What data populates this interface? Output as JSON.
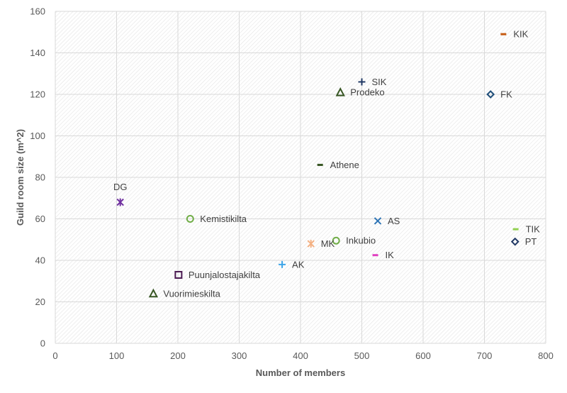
{
  "chart_data": {
    "type": "scatter",
    "title": "",
    "xlabel": "Number of members",
    "ylabel": "Guild room size (m^2)",
    "xlim": [
      0,
      800
    ],
    "ylim": [
      0,
      160
    ],
    "xticks": [
      0,
      100,
      200,
      300,
      400,
      500,
      600,
      700,
      800
    ],
    "yticks": [
      0,
      20,
      40,
      60,
      80,
      100,
      120,
      140,
      160
    ],
    "grid": true,
    "background_pattern": "diagonal-hatch",
    "points": [
      {
        "label": "KIK",
        "x": 731,
        "y": 149,
        "marker": "dash",
        "color": "#c55a11",
        "label_pos": "right"
      },
      {
        "label": "SIK",
        "x": 500,
        "y": 126,
        "marker": "plus",
        "color": "#203864",
        "label_pos": "right"
      },
      {
        "label": "Prodeko",
        "x": 465,
        "y": 121,
        "marker": "triangle",
        "color": "#375623",
        "label_pos": "right"
      },
      {
        "label": "FK",
        "x": 710,
        "y": 120,
        "marker": "diamond",
        "color": "#1f4e79",
        "label_pos": "right"
      },
      {
        "label": "Athene",
        "x": 432,
        "y": 86,
        "marker": "dash",
        "color": "#375623",
        "label_pos": "right"
      },
      {
        "label": "DG",
        "x": 106,
        "y": 68,
        "marker": "star",
        "color": "#7030a0",
        "label_pos": "above"
      },
      {
        "label": "Kemistikilta",
        "x": 220,
        "y": 60,
        "marker": "circle",
        "color": "#70ad47",
        "label_pos": "right"
      },
      {
        "label": "AS",
        "x": 526,
        "y": 59,
        "marker": "x",
        "color": "#2e75b6",
        "label_pos": "right"
      },
      {
        "label": "TIK",
        "x": 751,
        "y": 55,
        "marker": "dash",
        "color": "#92d050",
        "label_pos": "right"
      },
      {
        "label": "Inkubio",
        "x": 458,
        "y": 49.5,
        "marker": "circle",
        "color": "#70ad47",
        "label_pos": "right"
      },
      {
        "label": "PT",
        "x": 750,
        "y": 49,
        "marker": "diamond",
        "color": "#203864",
        "label_pos": "right"
      },
      {
        "label": "MK",
        "x": 417,
        "y": 48,
        "marker": "star",
        "color": "#f4b183",
        "label_pos": "right"
      },
      {
        "label": "IK",
        "x": 522,
        "y": 42.5,
        "marker": "dash",
        "color": "#e040c0",
        "label_pos": "right"
      },
      {
        "label": "AK",
        "x": 370,
        "y": 38,
        "marker": "plus",
        "color": "#3ba4e8",
        "label_pos": "right"
      },
      {
        "label": "Puunjalostajakilta",
        "x": 201,
        "y": 33,
        "marker": "square",
        "color": "#4b1a52",
        "label_pos": "right"
      },
      {
        "label": "Vuorimieskilta",
        "x": 160,
        "y": 24,
        "marker": "triangle",
        "color": "#375623",
        "label_pos": "right"
      }
    ]
  }
}
